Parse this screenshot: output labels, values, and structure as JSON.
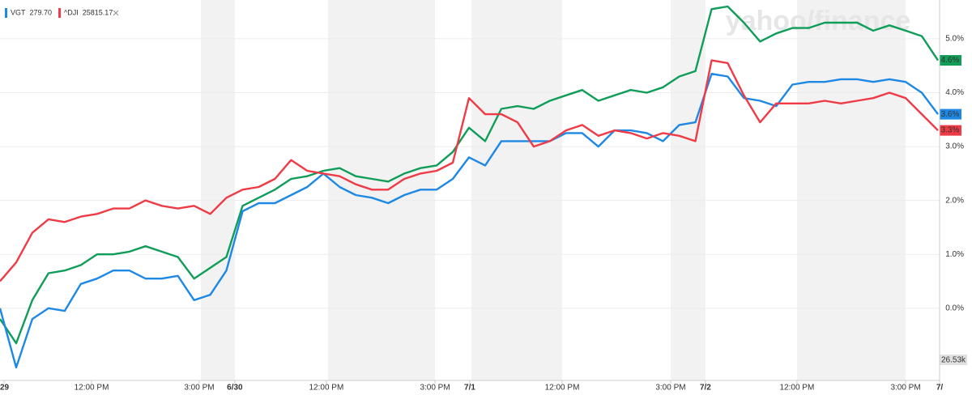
{
  "chart_data": {
    "type": "line",
    "watermark": "yahoo/finance",
    "volume_label": "26.53k",
    "xlim": [
      0,
      58
    ],
    "ylim": [
      -1.34,
      5.72
    ],
    "grid": true,
    "yticks": [
      {
        "value": 0,
        "label": "0.0%"
      },
      {
        "value": 1,
        "label": "1.0%"
      },
      {
        "value": 2,
        "label": "2.0%"
      },
      {
        "value": 3,
        "label": "3.0%"
      },
      {
        "value": 4,
        "label": "4.0%"
      },
      {
        "value": 5,
        "label": "5.0%"
      }
    ],
    "xticks": [
      {
        "value": 0.25,
        "label": "29"
      },
      {
        "value": 5.66,
        "label": "12:00 PM"
      },
      {
        "value": 12.32,
        "label": "3:00 PM"
      },
      {
        "value": 14.52,
        "label": "6/30"
      },
      {
        "value": 20.18,
        "label": "12:00 PM"
      },
      {
        "value": 26.9,
        "label": "3:00 PM"
      },
      {
        "value": 29.05,
        "label": "7/1"
      },
      {
        "value": 34.76,
        "label": "12:00 PM"
      },
      {
        "value": 41.47,
        "label": "3:00 PM"
      },
      {
        "value": 43.62,
        "label": "7/2"
      },
      {
        "value": 49.28,
        "label": "12:00 PM"
      },
      {
        "value": 56.0,
        "label": "3:00 PM"
      },
      {
        "value": 58.1,
        "label": "7/"
      }
    ],
    "series": [
      {
        "color": "#0f9d58",
        "end_label": "4.6%",
        "values": [
          -0.2,
          -0.65,
          0.15,
          0.65,
          0.7,
          0.8,
          1.0,
          1.0,
          1.05,
          1.15,
          1.05,
          0.95,
          0.55,
          0.75,
          0.95,
          1.9,
          2.05,
          2.2,
          2.4,
          2.45,
          2.55,
          2.6,
          2.45,
          2.4,
          2.35,
          2.5,
          2.6,
          2.65,
          2.9,
          3.35,
          3.1,
          3.7,
          3.75,
          3.7,
          3.85,
          3.95,
          4.05,
          3.85,
          3.95,
          4.05,
          4.0,
          4.1,
          4.3,
          4.4,
          5.55,
          5.6,
          5.3,
          4.95,
          5.1,
          5.2,
          5.2,
          5.3,
          5.3,
          5.3,
          5.15,
          5.25,
          5.15,
          5.05,
          4.6
        ]
      },
      {
        "name": "VGT",
        "quote": "279.70",
        "color": "#1e88e5",
        "end_label": "3.6%",
        "values": [
          0.0,
          -1.1,
          -0.2,
          0.0,
          -0.05,
          0.45,
          0.55,
          0.7,
          0.7,
          0.55,
          0.55,
          0.6,
          0.15,
          0.25,
          0.7,
          1.8,
          1.95,
          1.95,
          2.1,
          2.25,
          2.5,
          2.25,
          2.1,
          2.05,
          1.95,
          2.1,
          2.2,
          2.2,
          2.4,
          2.8,
          2.65,
          3.1,
          3.1,
          3.1,
          3.1,
          3.25,
          3.25,
          3.0,
          3.3,
          3.3,
          3.25,
          3.1,
          3.4,
          3.45,
          4.35,
          4.3,
          3.9,
          3.85,
          3.75,
          4.15,
          4.2,
          4.2,
          4.25,
          4.25,
          4.2,
          4.25,
          4.2,
          4.0,
          3.6
        ]
      },
      {
        "name": "^DJI",
        "quote": "25815.17",
        "color": "#ef3b46",
        "end_label": "3.3%",
        "values": [
          0.5,
          0.85,
          1.4,
          1.65,
          1.6,
          1.7,
          1.75,
          1.85,
          1.85,
          2.0,
          1.9,
          1.85,
          1.9,
          1.75,
          2.05,
          2.2,
          2.25,
          2.4,
          2.75,
          2.55,
          2.5,
          2.45,
          2.3,
          2.2,
          2.2,
          2.4,
          2.5,
          2.55,
          2.7,
          3.9,
          3.6,
          3.6,
          3.45,
          3.0,
          3.1,
          3.3,
          3.4,
          3.2,
          3.3,
          3.25,
          3.15,
          3.25,
          3.2,
          3.1,
          4.6,
          4.55,
          3.95,
          3.45,
          3.8,
          3.8,
          3.8,
          3.85,
          3.8,
          3.85,
          3.9,
          4.0,
          3.9,
          3.6,
          3.3
        ]
      }
    ]
  }
}
